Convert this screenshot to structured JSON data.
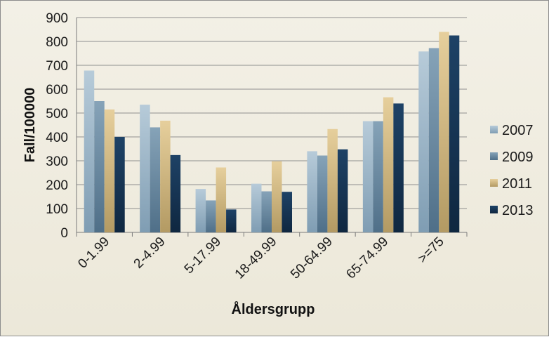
{
  "chart_data": {
    "type": "bar",
    "title": "",
    "xlabel": "Åldersgrupp",
    "ylabel": "Fall/100000",
    "categories": [
      "0-1.99",
      "2-4.99",
      "5-17.99",
      "18-49.99",
      "50-64.99",
      "65-74.99",
      ">=75"
    ],
    "series": [
      {
        "name": "2007",
        "color": "#9fb9cc",
        "values": [
          678,
          535,
          182,
          204,
          340,
          466,
          758
        ]
      },
      {
        "name": "2009",
        "color": "#6e8ea6",
        "values": [
          550,
          440,
          134,
          172,
          322,
          466,
          772
        ]
      },
      {
        "name": "2011",
        "color": "#d8bf8a",
        "values": [
          515,
          468,
          272,
          298,
          433,
          566,
          840
        ]
      },
      {
        "name": "2013",
        "color": "#1b3a5c",
        "values": [
          400,
          324,
          96,
          170,
          348,
          540,
          825
        ]
      }
    ],
    "yticks": [
      "0",
      "100",
      "200",
      "300",
      "400",
      "500",
      "600",
      "700",
      "800",
      "900"
    ],
    "ylim": [
      0,
      900
    ],
    "grid": true,
    "legend_position": "right"
  }
}
